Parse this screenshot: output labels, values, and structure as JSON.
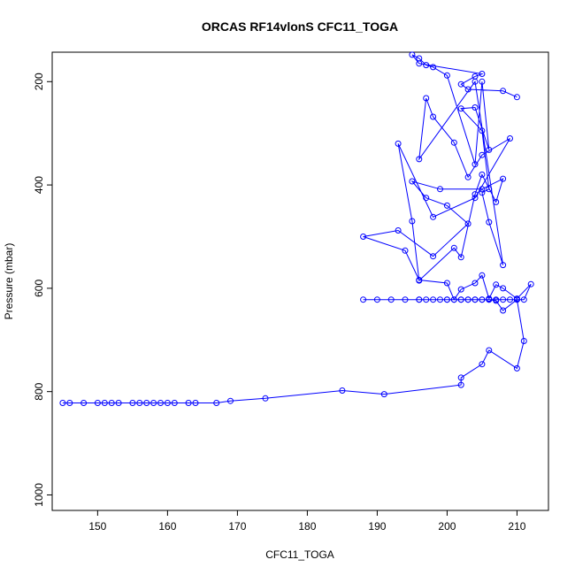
{
  "chart_data": {
    "type": "line",
    "title": "ORCAS RF14vlonS CFC11_TOGA",
    "xlabel": "CFC11_TOGA",
    "ylabel": "Pressure (mbar)",
    "xlim": [
      143.5,
      214.5
    ],
    "ylim": [
      1030,
      143
    ],
    "y_reversed": true,
    "x_ticks": [
      150,
      160,
      170,
      180,
      190,
      200,
      210
    ],
    "y_ticks": [
      200,
      400,
      600,
      800,
      1000
    ],
    "grid": false,
    "legend": "none",
    "series_color": "#0000ff",
    "series": [
      {
        "x": [
          145,
          146,
          148,
          150,
          151,
          152,
          153,
          155,
          156,
          157,
          158,
          159,
          160,
          161,
          163,
          164,
          167,
          169,
          174,
          185,
          191,
          202,
          202,
          205,
          206,
          210,
          211,
          210,
          208,
          207,
          206,
          205,
          204,
          203,
          202,
          201,
          200,
          199,
          197,
          196,
          188,
          190,
          192,
          194,
          196,
          198,
          200,
          202,
          203,
          204,
          205,
          206,
          207,
          208,
          209,
          210,
          211,
          212,
          210,
          208,
          207,
          206,
          205,
          204,
          202,
          201,
          200,
          196,
          194,
          188,
          193,
          198,
          203,
          200,
          197,
          195,
          199,
          205,
          208,
          207,
          205,
          204,
          202,
          201,
          196,
          195,
          193,
          198,
          204,
          209,
          205,
          203,
          201,
          198,
          197,
          196,
          204,
          208,
          206,
          205,
          206,
          205,
          202,
          204,
          206,
          205,
          204,
          200,
          198,
          197,
          196,
          195,
          196,
          205,
          204,
          202,
          203,
          208,
          210
        ],
        "y": [
          822,
          822,
          822,
          822,
          822,
          822,
          822,
          822,
          822,
          822,
          822,
          822,
          822,
          822,
          822,
          822,
          822,
          818,
          813,
          798,
          805,
          787,
          773,
          747,
          720,
          755,
          702,
          622,
          643,
          624,
          622,
          622,
          622,
          622,
          622,
          622,
          622,
          622,
          622,
          622,
          622,
          622,
          622,
          622,
          622,
          622,
          622,
          622,
          622,
          622,
          622,
          622,
          622,
          622,
          622,
          622,
          622,
          592,
          620,
          600,
          593,
          620,
          575,
          590,
          602,
          622,
          590,
          584,
          527,
          500,
          488,
          538,
          475,
          440,
          425,
          393,
          408,
          408,
          388,
          433,
          380,
          418,
          540,
          522,
          585,
          470,
          320,
          462,
          425,
          310,
          342,
          385,
          318,
          268,
          232,
          350,
          200,
          555,
          472,
          415,
          408,
          295,
          252,
          250,
          332,
          200,
          360,
          188,
          172,
          168,
          155,
          148,
          165,
          185,
          190,
          205,
          215,
          218,
          230
        ]
      }
    ]
  }
}
